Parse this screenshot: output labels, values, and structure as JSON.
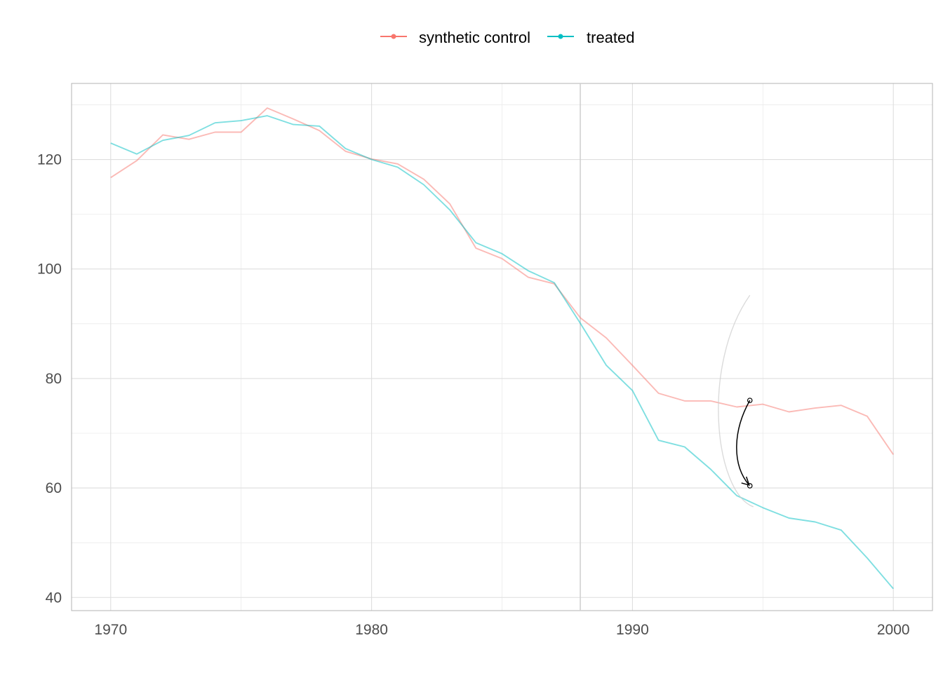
{
  "chart_data": {
    "type": "line",
    "title": "",
    "xlabel": "",
    "ylabel": "",
    "xlim": [
      1968.5,
      2001.5
    ],
    "ylim": [
      37.6,
      133.9
    ],
    "x_ticks": [
      1970,
      1980,
      1990,
      2000
    ],
    "y_ticks": [
      40,
      60,
      80,
      100,
      120
    ],
    "grid": true,
    "legend_position": "top",
    "intervention_year": 1988,
    "x": [
      1970,
      1971,
      1972,
      1973,
      1974,
      1975,
      1976,
      1977,
      1978,
      1979,
      1980,
      1981,
      1982,
      1983,
      1984,
      1985,
      1986,
      1987,
      1988,
      1989,
      1990,
      1991,
      1992,
      1993,
      1994,
      1995,
      1996,
      1997,
      1998,
      1999,
      2000
    ],
    "series": [
      {
        "name": "synthetic control",
        "color": "#F8766D",
        "values": [
          116.7,
          119.8,
          124.5,
          123.7,
          125.0,
          125.0,
          129.4,
          127.4,
          125.3,
          121.5,
          120.1,
          119.2,
          116.4,
          111.9,
          103.8,
          101.9,
          98.5,
          97.3,
          91.1,
          87.4,
          82.4,
          77.3,
          75.9,
          75.9,
          74.8,
          75.3,
          73.9,
          74.6,
          75.1,
          73.1,
          66.1
        ]
      },
      {
        "name": "treated",
        "color": "#00BFC4",
        "values": [
          123.0,
          121.0,
          123.5,
          124.4,
          126.7,
          127.1,
          128.0,
          126.4,
          126.1,
          122.0,
          120.0,
          118.6,
          115.4,
          110.8,
          104.8,
          102.8,
          99.7,
          97.5,
          90.1,
          82.4,
          77.8,
          68.7,
          67.5,
          63.4,
          58.6,
          56.4,
          54.5,
          53.8,
          52.3,
          47.2,
          41.6
        ]
      }
    ],
    "annotation": {
      "from": [
        1994.5,
        76.0
      ],
      "to": [
        1994.5,
        60.4
      ]
    }
  }
}
